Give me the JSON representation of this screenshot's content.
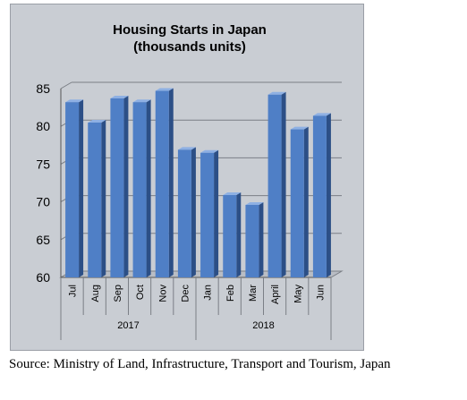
{
  "chart_data": {
    "type": "bar",
    "title_lines": [
      "Housing Starts in Japan",
      "(thousands units)"
    ],
    "categories": [
      "Jul",
      "Aug",
      "Sep",
      "Oct",
      "Nov",
      "Dec",
      "Jan",
      "Feb",
      "Mar",
      "April",
      "May",
      "Jun"
    ],
    "values": [
      83.2,
      80.5,
      83.7,
      83.2,
      84.7,
      76.9,
      76.5,
      70.9,
      69.6,
      84.2,
      79.6,
      81.4
    ],
    "groups": [
      {
        "label": "2017",
        "categories": [
          "Jul",
          "Aug",
          "Sep",
          "Oct",
          "Nov",
          "Dec"
        ]
      },
      {
        "label": "2018",
        "categories": [
          "Jan",
          "Feb",
          "Mar",
          "April",
          "May",
          "Jun"
        ]
      }
    ],
    "ylim": [
      60,
      85
    ],
    "yticks": [
      60,
      65,
      70,
      75,
      80,
      85
    ],
    "grid": true,
    "bar_color": "#4f7fc6",
    "bar_side_color": "#2c4f86",
    "bar_top_color": "#8eb0e3",
    "background_color": "#c9cdd3"
  },
  "source_text": "Source: Ministry of Land, Infrastructure, Transport and Tourism, Japan"
}
